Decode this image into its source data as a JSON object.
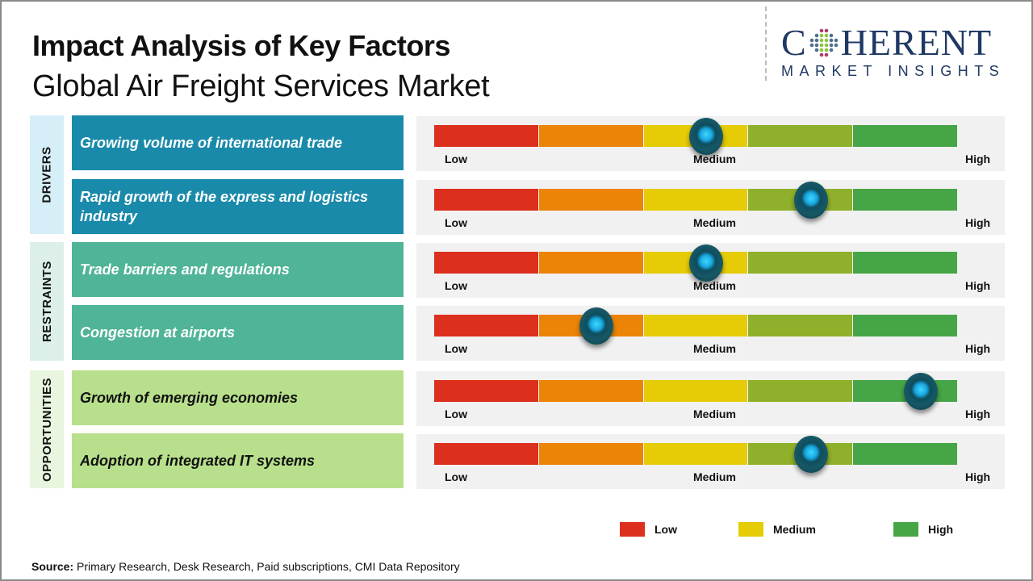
{
  "header": {
    "title": "Impact Analysis of Key Factors",
    "subtitle": "Global Air Freight Services Market"
  },
  "logo": {
    "main_left": "C",
    "main_right": "HERENT",
    "sub": "MARKET INSIGHTS"
  },
  "categories": [
    {
      "label": "DRIVERS",
      "color": "#1a8aaa"
    },
    {
      "label": "RESTRAINTS",
      "color": "#50b498"
    },
    {
      "label": "OPPORTUNITIES",
      "color": "#b8e08c"
    }
  ],
  "scale": {
    "low_label": "Low",
    "medium_label": "Medium",
    "high_label": "High",
    "segment_colors": [
      "#dc2f1e",
      "#ec8407",
      "#e5cc07",
      "#8fb02a",
      "#46a546"
    ]
  },
  "legend": [
    {
      "label": "Low",
      "color": "#dc2f1e"
    },
    {
      "label": "Medium",
      "color": "#e5cc07"
    },
    {
      "label": "High",
      "color": "#46a546"
    }
  ],
  "source": {
    "label": "Source:",
    "text": " Primary Research, Desk Research, Paid subscriptions, CMI Data Repository"
  },
  "chart_data": {
    "type": "table",
    "title": "Impact Analysis of Key Factors - Global Air Freight Services Market",
    "scale": [
      "Low",
      "Medium",
      "High"
    ],
    "value_range": [
      0,
      1
    ],
    "rows": [
      {
        "category": "DRIVERS",
        "factor": "Growing volume of international  trade",
        "impact": 0.52
      },
      {
        "category": "DRIVERS",
        "factor": "Rapid growth of the express and logistics industry",
        "impact": 0.72
      },
      {
        "category": "RESTRAINTS",
        "factor": "Trade  barriers  and  regulations",
        "impact": 0.52
      },
      {
        "category": "RESTRAINTS",
        "factor": "Congestion  at airports",
        "impact": 0.31
      },
      {
        "category": "OPPORTUNITIES",
        "factor": "Growth  of  emerging  economies",
        "impact": 0.93
      },
      {
        "category": "OPPORTUNITIES",
        "factor": "Adoption  of  integrated  IT systems",
        "impact": 0.72
      }
    ]
  }
}
